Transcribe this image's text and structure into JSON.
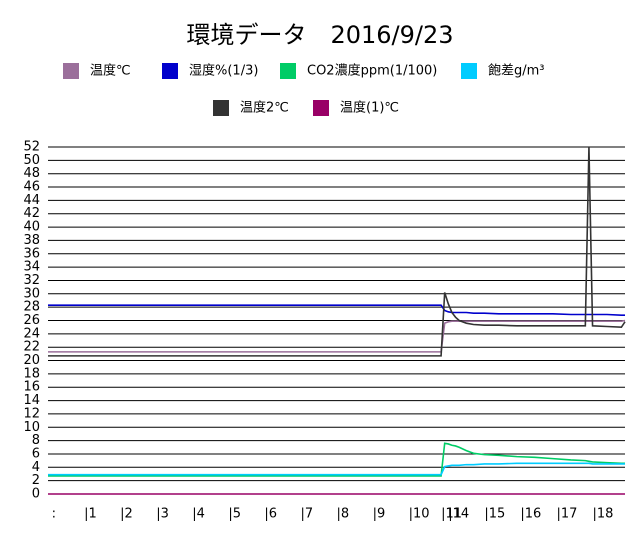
{
  "chart_data": {
    "type": "line",
    "title": "環境データ　2016/9/23",
    "x": [
      0,
      109,
      110,
      111,
      112,
      113,
      114,
      116,
      118,
      121,
      125,
      130,
      135,
      140,
      145,
      149,
      150,
      151,
      155,
      159,
      160
    ],
    "xlim": [
      0,
      160
    ],
    "xticks": [
      {
        "value": 1,
        "label": ":"
      },
      {
        "value": 10,
        "label": "|1"
      },
      {
        "value": 20,
        "label": "|2"
      },
      {
        "value": 30,
        "label": "|3"
      },
      {
        "value": 40,
        "label": "|4"
      },
      {
        "value": 50,
        "label": "|5"
      },
      {
        "value": 60,
        "label": "|6"
      },
      {
        "value": 70,
        "label": "|7"
      },
      {
        "value": 80,
        "label": "|8"
      },
      {
        "value": 90,
        "label": "|9"
      },
      {
        "value": 100,
        "label": "|10"
      },
      {
        "value": 109,
        "label": "|11"
      },
      {
        "value": 111,
        "label": "|14"
      },
      {
        "value": 121,
        "label": "|15"
      },
      {
        "value": 131,
        "label": "|16"
      },
      {
        "value": 141,
        "label": "|17"
      },
      {
        "value": 151,
        "label": "|18"
      }
    ],
    "ylim": [
      0,
      52
    ],
    "yticks": [
      0,
      2,
      4,
      6,
      8,
      10,
      12,
      14,
      16,
      18,
      20,
      22,
      24,
      26,
      28,
      30,
      32,
      34,
      36,
      38,
      40,
      42,
      44,
      46,
      48,
      50,
      52
    ],
    "grid": true,
    "series": [
      {
        "name": "温度℃",
        "color": "#9b6f9b",
        "values": [
          21.3,
          21.3,
          25.6,
          25.8,
          25.9,
          25.9,
          25.9,
          25.9,
          25.9,
          25.9,
          25.9,
          25.9,
          25.9,
          25.9,
          25.9,
          25.9,
          25.9,
          25.9,
          25.9,
          25.9,
          26.0
        ]
      },
      {
        "name": "湿度%(1/3)",
        "color": "#0000cc",
        "values": [
          28.3,
          28.3,
          27.5,
          27.3,
          27.2,
          27.2,
          27.2,
          27.2,
          27.1,
          27.1,
          27.0,
          27.0,
          27.0,
          27.0,
          26.9,
          26.9,
          26.9,
          26.9,
          26.9,
          26.8,
          26.8
        ]
      },
      {
        "name": "CO2濃度ppm(1/100)",
        "color": "#00cc66",
        "values": [
          2.7,
          2.7,
          7.6,
          7.5,
          7.3,
          7.2,
          7.0,
          6.5,
          6.1,
          5.9,
          5.8,
          5.6,
          5.5,
          5.3,
          5.1,
          5.0,
          4.9,
          4.8,
          4.7,
          4.6,
          4.6
        ]
      },
      {
        "name": "飽差g/m³",
        "color": "#00ccff",
        "values": [
          2.9,
          2.9,
          4.1,
          4.2,
          4.3,
          4.3,
          4.3,
          4.4,
          4.4,
          4.5,
          4.5,
          4.6,
          4.6,
          4.6,
          4.6,
          4.6,
          4.6,
          4.5,
          4.5,
          4.5,
          4.5
        ]
      },
      {
        "name": "温度2℃",
        "color": "#333333",
        "values": [
          20.7,
          20.7,
          30.2,
          28.5,
          27.2,
          26.5,
          26.0,
          25.6,
          25.4,
          25.3,
          25.3,
          25.2,
          25.2,
          25.2,
          25.2,
          25.2,
          52,
          25.2,
          25.1,
          25.0,
          25.8
        ]
      },
      {
        "name": "温度(1)℃",
        "color": "#990066",
        "values": [
          0,
          0,
          0,
          0,
          0,
          0,
          0,
          0,
          0,
          0,
          0,
          0,
          0,
          0,
          0,
          0,
          0,
          0,
          0,
          0,
          0
        ]
      }
    ]
  }
}
